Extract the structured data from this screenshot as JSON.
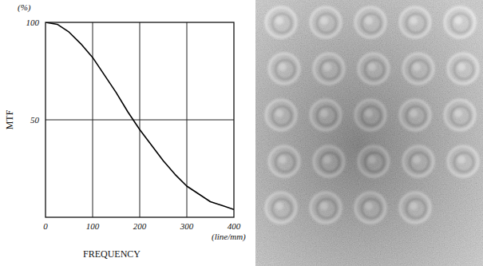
{
  "chart_data": {
    "type": "line",
    "ylabel": "MTF",
    "xlabel": "FREQUENCY",
    "y_unit_label": "(%)",
    "x_unit_label": "(line/mm)",
    "x": [
      0,
      25,
      50,
      75,
      100,
      125,
      150,
      175,
      200,
      225,
      250,
      275,
      300,
      325,
      350,
      375,
      400
    ],
    "values": [
      100,
      99,
      95,
      89,
      82,
      73,
      64,
      54,
      45,
      37,
      29,
      22,
      16,
      12,
      8,
      6,
      4
    ],
    "color": "#000000",
    "xlim": [
      0,
      400
    ],
    "xticks": [
      0,
      100,
      200,
      300,
      400
    ],
    "ylim": [
      0,
      100
    ],
    "yticks": [
      50,
      100
    ],
    "grid": true
  }
}
